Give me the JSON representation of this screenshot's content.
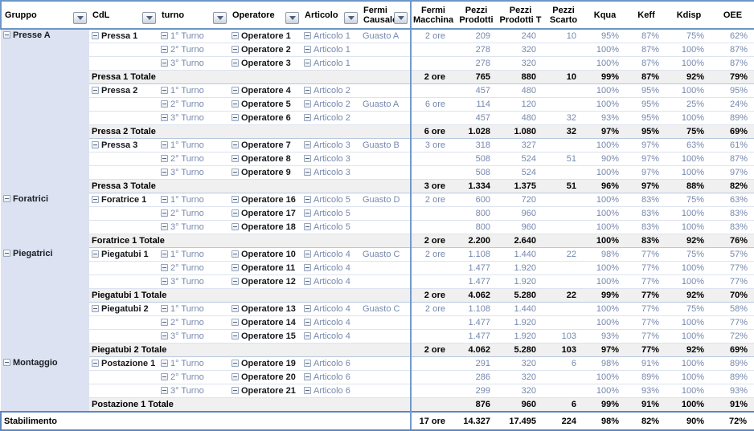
{
  "header": {
    "filters": [
      {
        "label": "Gruppo"
      },
      {
        "label": "CdL"
      },
      {
        "label": "turno"
      },
      {
        "label": "Operatore"
      },
      {
        "label": "Articolo"
      },
      {
        "label": "Fermi Causale"
      }
    ],
    "values": [
      "Fermi Macchina",
      "Pezzi Prodotti",
      "Pezzi Prodotti T",
      "Pezzi Scarto",
      "Kqua",
      "Keff",
      "Kdisp",
      "OEE"
    ]
  },
  "icons": {
    "collapse": "minus-box-collapse-icon",
    "filter_dropdown": "chevron-down-filter-icon"
  },
  "colors": {
    "header_border": "#6d96c8",
    "grand_border": "#5e87c0",
    "divider": "#7199cb",
    "group_fill": "#dce2f1",
    "subtotal_fill": "#f0f0f0",
    "data_text": "#7688ae",
    "gridline": "#dde3ef"
  },
  "table": {
    "rows": [
      {
        "k": "data",
        "g": {
          "label": "Presse A",
          "span": 12
        },
        "c": "Pressa 1",
        "t": "1° Turno",
        "o": "Operatore 1",
        "a": "Articolo 1",
        "f": "Guasto A",
        "v": [
          "2 ore",
          "209",
          "240",
          "10",
          "95%",
          "87%",
          "75%",
          "62%"
        ]
      },
      {
        "k": "data",
        "t": "2° Turno",
        "o": "Operatore 2",
        "a": "Articolo 1",
        "v": [
          "",
          "278",
          "320",
          "",
          "100%",
          "87%",
          "100%",
          "87%"
        ]
      },
      {
        "k": "data",
        "t": "3° Turno",
        "o": "Operatore 3",
        "a": "Articolo 1",
        "v": [
          "",
          "278",
          "320",
          "",
          "100%",
          "87%",
          "100%",
          "87%"
        ]
      },
      {
        "k": "subtotal",
        "label": "Pressa 1 Totale",
        "v": [
          "2 ore",
          "765",
          "880",
          "10",
          "99%",
          "87%",
          "92%",
          "79%"
        ]
      },
      {
        "k": "data",
        "c": "Pressa 2",
        "t": "1° Turno",
        "o": "Operatore 4",
        "a": "Articolo 2",
        "v": [
          "",
          "457",
          "480",
          "",
          "100%",
          "95%",
          "100%",
          "95%"
        ]
      },
      {
        "k": "data",
        "t": "2° Turno",
        "o": "Operatore 5",
        "a": "Articolo 2",
        "f": "Guasto A",
        "v": [
          "6 ore",
          "114",
          "120",
          "",
          "100%",
          "95%",
          "25%",
          "24%"
        ]
      },
      {
        "k": "data",
        "t": "3° Turno",
        "o": "Operatore 6",
        "a": "Articolo 2",
        "v": [
          "",
          "457",
          "480",
          "32",
          "93%",
          "95%",
          "100%",
          "89%"
        ]
      },
      {
        "k": "subtotal",
        "label": "Pressa 2 Totale",
        "v": [
          "6 ore",
          "1.028",
          "1.080",
          "32",
          "97%",
          "95%",
          "75%",
          "69%"
        ]
      },
      {
        "k": "data",
        "c": "Pressa 3",
        "t": "1° Turno",
        "o": "Operatore 7",
        "a": "Articolo 3",
        "f": "Guasto B",
        "v": [
          "3 ore",
          "318",
          "327",
          "",
          "100%",
          "97%",
          "63%",
          "61%"
        ]
      },
      {
        "k": "data",
        "t": "2° Turno",
        "o": "Operatore 8",
        "a": "Articolo 3",
        "v": [
          "",
          "508",
          "524",
          "51",
          "90%",
          "97%",
          "100%",
          "87%"
        ]
      },
      {
        "k": "data",
        "t": "3° Turno",
        "o": "Operatore 9",
        "a": "Articolo 3",
        "v": [
          "",
          "508",
          "524",
          "",
          "100%",
          "97%",
          "100%",
          "97%"
        ]
      },
      {
        "k": "subtotal",
        "label": "Pressa 3 Totale",
        "v": [
          "3 ore",
          "1.334",
          "1.375",
          "51",
          "96%",
          "97%",
          "88%",
          "82%"
        ]
      },
      {
        "k": "data",
        "g": {
          "label": "Foratrici",
          "span": 4
        },
        "c": "Foratrice 1",
        "t": "1° Turno",
        "o": "Operatore 16",
        "a": "Articolo 5",
        "f": "Guasto D",
        "v": [
          "2 ore",
          "600",
          "720",
          "",
          "100%",
          "83%",
          "75%",
          "63%"
        ]
      },
      {
        "k": "data",
        "t": "2° Turno",
        "o": "Operatore 17",
        "a": "Articolo 5",
        "v": [
          "",
          "800",
          "960",
          "",
          "100%",
          "83%",
          "100%",
          "83%"
        ]
      },
      {
        "k": "data",
        "t": "3° Turno",
        "o": "Operatore 18",
        "a": "Articolo 5",
        "v": [
          "",
          "800",
          "960",
          "",
          "100%",
          "83%",
          "100%",
          "83%"
        ]
      },
      {
        "k": "subtotal",
        "label": "Foratrice 1 Totale",
        "v": [
          "2 ore",
          "2.200",
          "2.640",
          "",
          "100%",
          "83%",
          "92%",
          "76%"
        ]
      },
      {
        "k": "data",
        "g": {
          "label": "Piegatrici",
          "span": 8
        },
        "c": "Piegatubi 1",
        "t": "1° Turno",
        "o": "Operatore 10",
        "a": "Articolo 4",
        "f": "Guasto C",
        "v": [
          "2 ore",
          "1.108",
          "1.440",
          "22",
          "98%",
          "77%",
          "75%",
          "57%"
        ]
      },
      {
        "k": "data",
        "t": "2° Turno",
        "o": "Operatore 11",
        "a": "Articolo 4",
        "v": [
          "",
          "1.477",
          "1.920",
          "",
          "100%",
          "77%",
          "100%",
          "77%"
        ]
      },
      {
        "k": "data",
        "t": "3° Turno",
        "o": "Operatore 12",
        "a": "Articolo 4",
        "v": [
          "",
          "1.477",
          "1.920",
          "",
          "100%",
          "77%",
          "100%",
          "77%"
        ]
      },
      {
        "k": "subtotal",
        "label": "Piegatubi 1 Totale",
        "v": [
          "2 ore",
          "4.062",
          "5.280",
          "22",
          "99%",
          "77%",
          "92%",
          "70%"
        ]
      },
      {
        "k": "data",
        "c": "Piegatubi 2",
        "t": "1° Turno",
        "o": "Operatore 13",
        "a": "Articolo 4",
        "f": "Guasto C",
        "v": [
          "2 ore",
          "1.108",
          "1.440",
          "",
          "100%",
          "77%",
          "75%",
          "58%"
        ]
      },
      {
        "k": "data",
        "t": "2° Turno",
        "o": "Operatore 14",
        "a": "Articolo 4",
        "v": [
          "",
          "1.477",
          "1.920",
          "",
          "100%",
          "77%",
          "100%",
          "77%"
        ]
      },
      {
        "k": "data",
        "t": "3° Turno",
        "o": "Operatore 15",
        "a": "Articolo 4",
        "v": [
          "",
          "1.477",
          "1.920",
          "103",
          "93%",
          "77%",
          "100%",
          "72%"
        ]
      },
      {
        "k": "subtotal",
        "label": "Piegatubi 2 Totale",
        "v": [
          "2 ore",
          "4.062",
          "5.280",
          "103",
          "97%",
          "77%",
          "92%",
          "69%"
        ]
      },
      {
        "k": "data",
        "g": {
          "label": "Montaggio",
          "span": 4
        },
        "c": "Postazione 1",
        "t": "1° Turno",
        "o": "Operatore 19",
        "a": "Articolo 6",
        "v": [
          "",
          "291",
          "320",
          "6",
          "98%",
          "91%",
          "100%",
          "89%"
        ]
      },
      {
        "k": "data",
        "t": "2° Turno",
        "o": "Operatore 20",
        "a": "Articolo 6",
        "v": [
          "",
          "286",
          "320",
          "",
          "100%",
          "89%",
          "100%",
          "89%"
        ]
      },
      {
        "k": "data",
        "t": "3° Turno",
        "o": "Operatore 21",
        "a": "Articolo 6",
        "v": [
          "",
          "299",
          "320",
          "",
          "100%",
          "93%",
          "100%",
          "93%"
        ]
      },
      {
        "k": "subtotal",
        "label": "Postazione 1 Totale",
        "v": [
          "",
          "876",
          "960",
          "6",
          "99%",
          "91%",
          "100%",
          "91%"
        ]
      },
      {
        "k": "grand",
        "label": "Stabilimento",
        "v": [
          "17 ore",
          "14.327",
          "17.495",
          "224",
          "98%",
          "82%",
          "90%",
          "72%"
        ]
      }
    ]
  }
}
